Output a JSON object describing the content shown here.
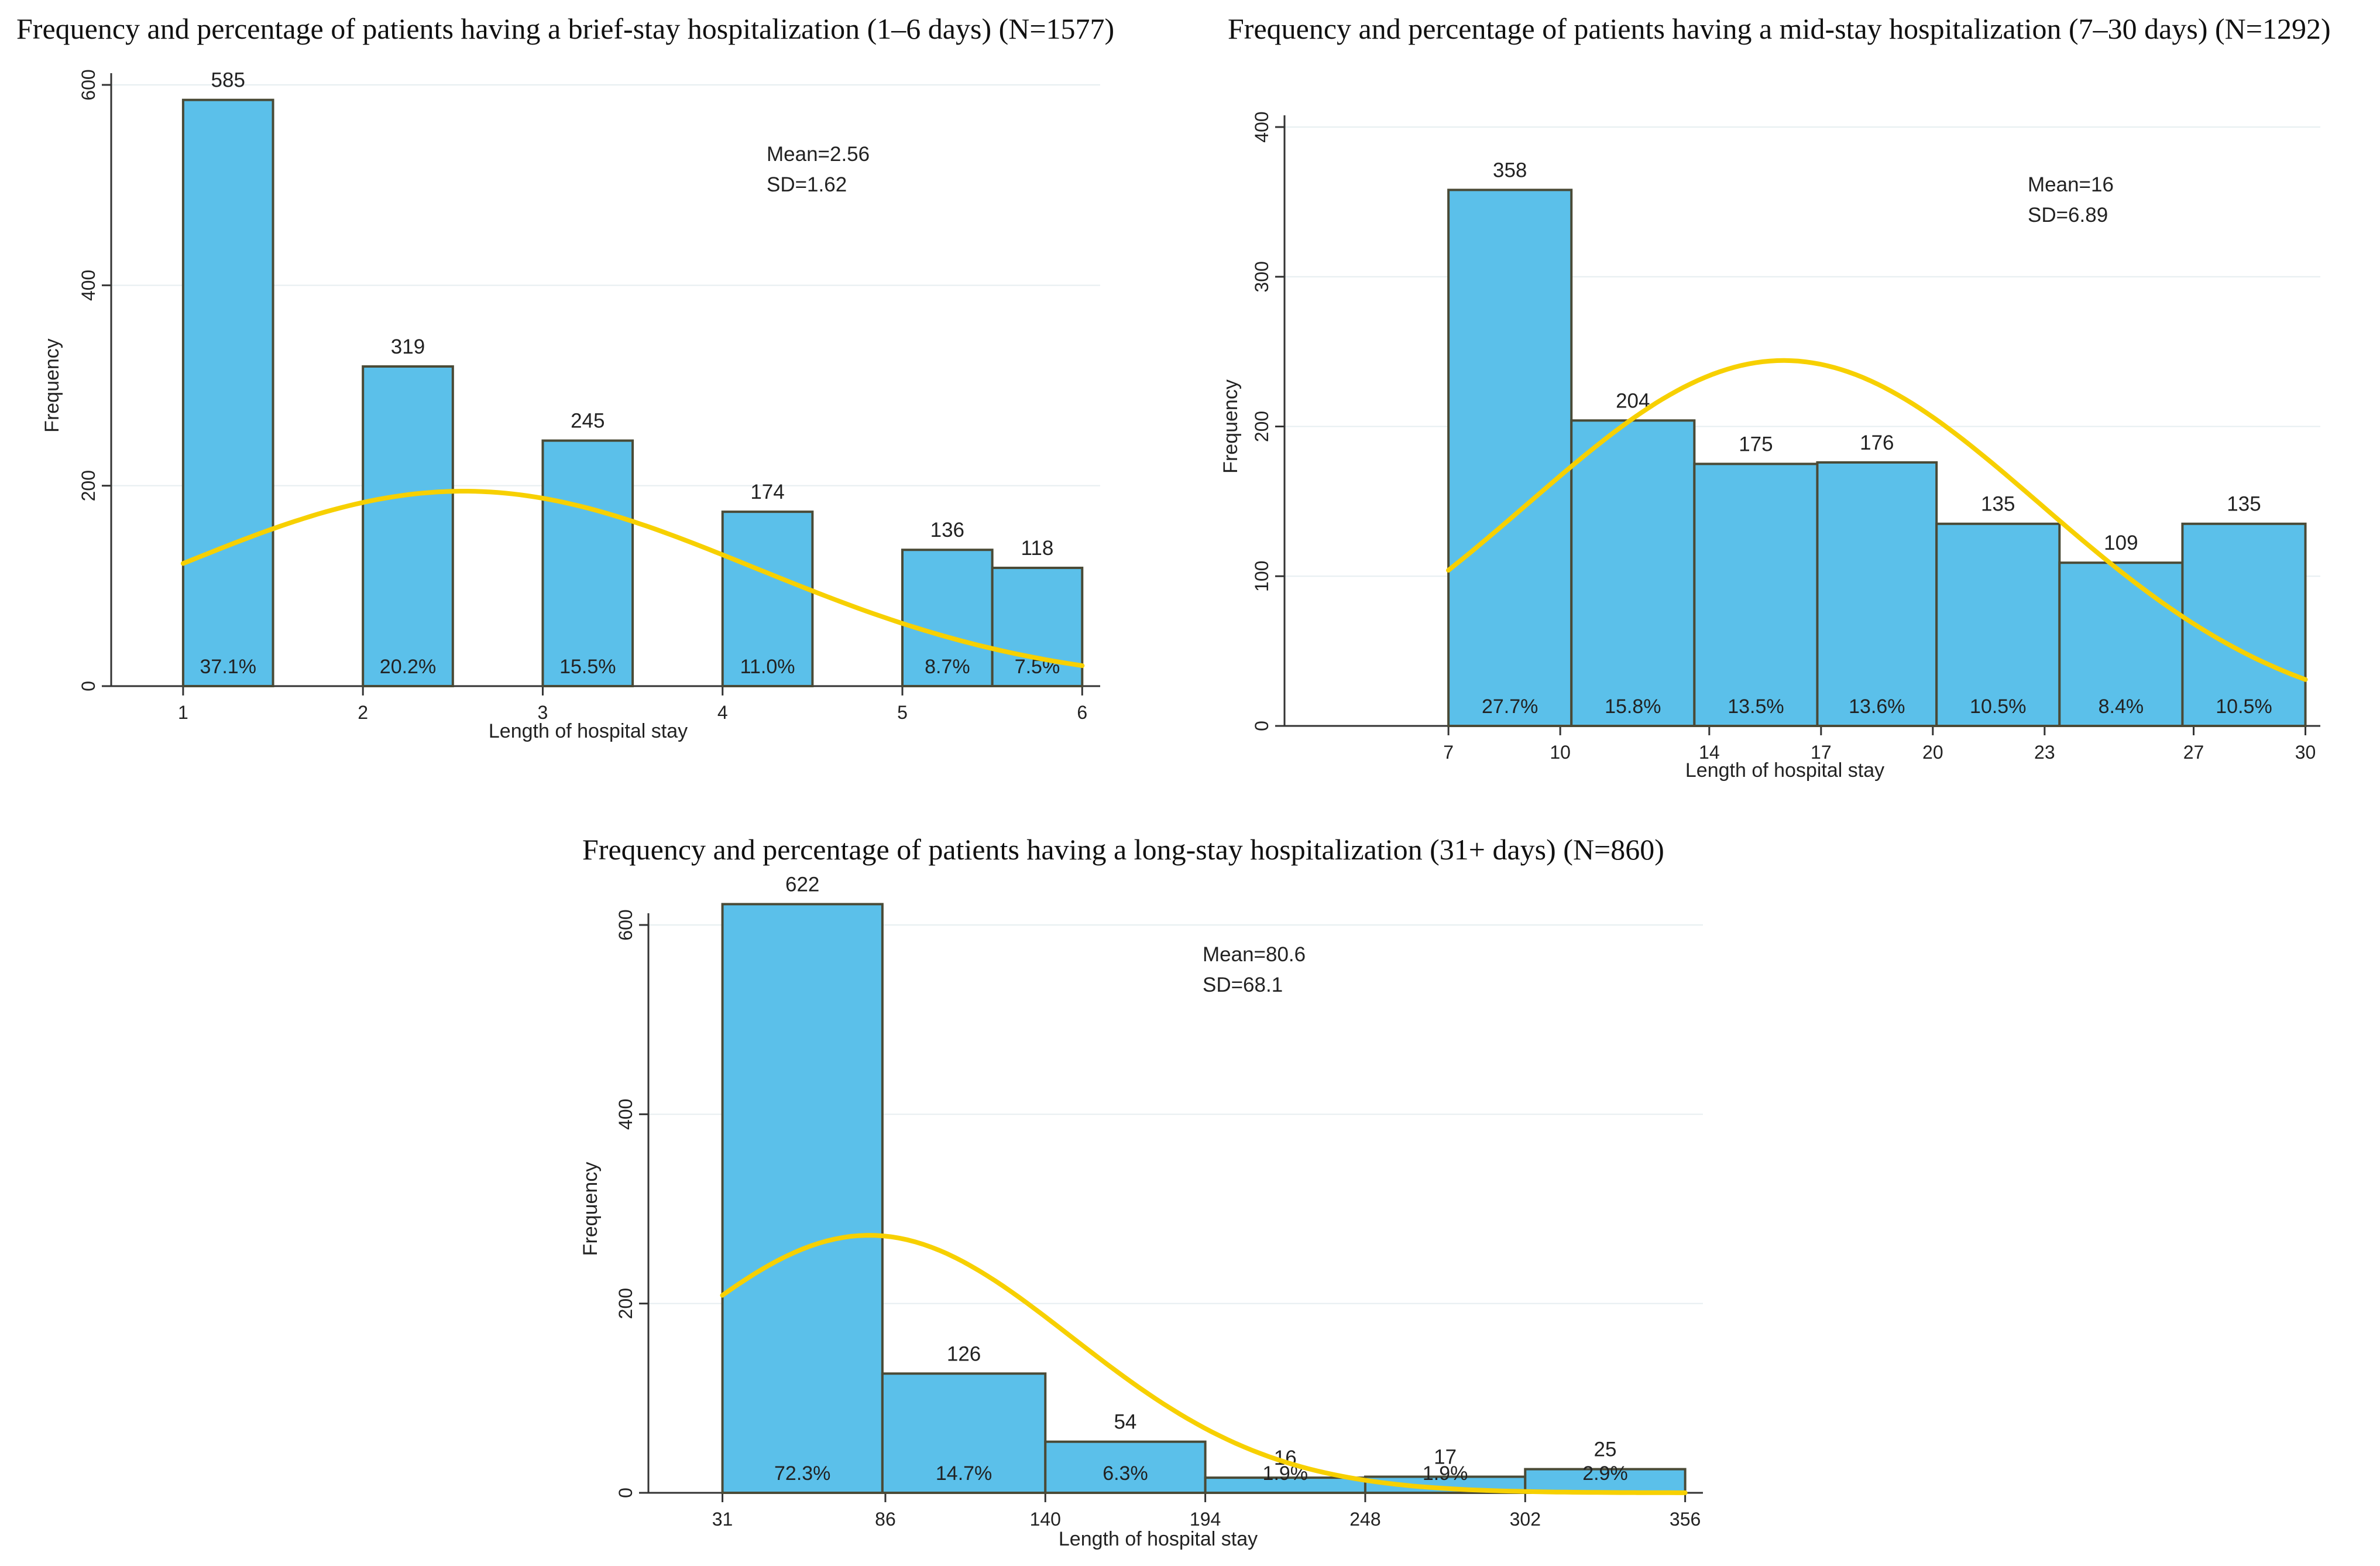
{
  "chart_data": [
    {
      "type": "bar",
      "title": "Frequency and percentage of patients having a brief-stay hospitalization (1–6 days) (N=1577)",
      "xlabel": "Length of hospital stay",
      "ylabel": "Frequency",
      "xlim": [
        0.6,
        6.1
      ],
      "ylim": [
        0,
        600
      ],
      "xticks": [
        1,
        2,
        3,
        4,
        5,
        6
      ],
      "yticks": [
        0,
        200,
        400,
        600
      ],
      "bins": [
        [
          1,
          1.5
        ],
        [
          2,
          2.5
        ],
        [
          3,
          3.5
        ],
        [
          4,
          4.5
        ],
        [
          5,
          5.5
        ],
        [
          5.5,
          6
        ]
      ],
      "values": [
        585,
        319,
        245,
        174,
        136,
        118
      ],
      "percent_labels": [
        "37.1%",
        "20.2%",
        "15.5%",
        "11.0%",
        "8.7%",
        "7.5%"
      ],
      "stats": [
        "Mean=2.56",
        "SD=1.62"
      ],
      "curve": {
        "mean": 2.56,
        "sd": 1.62,
        "scale": 790
      }
    },
    {
      "type": "bar",
      "title": "Frequency and percentage of patients having a mid-stay hospitalization (7–30 days) (N=1292)",
      "xlabel": "Length of hospital stay",
      "ylabel": "Frequency",
      "xlim": [
        2.6,
        30.4
      ],
      "ylim": [
        0,
        400
      ],
      "xticks": [
        7,
        10,
        14,
        17,
        20,
        23,
        27,
        30
      ],
      "yticks": [
        0,
        100,
        200,
        300,
        400
      ],
      "bins": [
        [
          7,
          10.3
        ],
        [
          10.3,
          13.6
        ],
        [
          13.6,
          16.9
        ],
        [
          16.9,
          20.1
        ],
        [
          20.1,
          23.4
        ],
        [
          23.4,
          26.7
        ],
        [
          26.7,
          30
        ]
      ],
      "values": [
        358,
        204,
        175,
        176,
        135,
        109,
        135
      ],
      "percent_labels": [
        "27.7%",
        "15.8%",
        "13.5%",
        "13.6%",
        "10.5%",
        "8.4%",
        "10.5%"
      ],
      "stats": [
        "Mean=16",
        "SD=6.89"
      ],
      "curve": {
        "mean": 16,
        "sd": 6.89,
        "scale": 4215
      }
    },
    {
      "type": "bar",
      "title": "Frequency and percentage of patients having a long-stay hospitalization (31+ days) (N=860)",
      "xlabel": "Length of hospital stay",
      "ylabel": "Frequency",
      "xlim": [
        6,
        362
      ],
      "ylim": [
        0,
        600
      ],
      "xticks": [
        31,
        86,
        140,
        194,
        248,
        302,
        356
      ],
      "yticks": [
        0,
        200,
        400,
        600
      ],
      "bins": [
        [
          31,
          85
        ],
        [
          85,
          140
        ],
        [
          140,
          194
        ],
        [
          194,
          248
        ],
        [
          248,
          302
        ],
        [
          302,
          356
        ]
      ],
      "values": [
        622,
        126,
        54,
        16,
        17,
        25
      ],
      "percent_labels": [
        "72.3%",
        "14.7%",
        "6.3%",
        "1.9%",
        "1.9%",
        "2.9%"
      ],
      "stats": [
        "Mean=80.6",
        "SD=68.1"
      ],
      "curve": {
        "mean": 80.6,
        "sd": 68.1,
        "scale": 46450
      }
    }
  ]
}
